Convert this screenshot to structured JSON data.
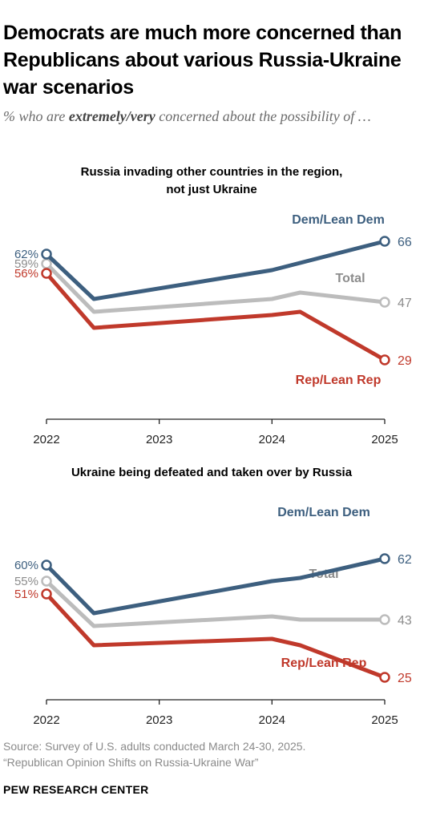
{
  "header": {
    "title": "Democrats are much more concerned than Republicans about various Russia-Ukraine war scenarios",
    "subtitle_before": "% who are ",
    "subtitle_emphasis": "extremely/very",
    "subtitle_after": " concerned about the possibility of …"
  },
  "colors": {
    "dem": "#3d5f7f",
    "total": "#bcbcbc",
    "rep": "#c0392b",
    "total_label": "#8c8c8c",
    "axis": "#222222"
  },
  "chart_data": [
    {
      "type": "line",
      "title": "Russia invading other countries in the region, not just Ukraine",
      "x_ticks": [
        2022,
        2023,
        2024,
        2025
      ],
      "x_range": [
        2022,
        2025
      ],
      "y_range": [
        20,
        70
      ],
      "series": [
        {
          "name": "Dem/Lean Dem",
          "key": "dem",
          "points": [
            [
              2022.0,
              62
            ],
            [
              2022.42,
              48
            ],
            [
              2024.0,
              57
            ],
            [
              2025.0,
              66
            ]
          ],
          "start_label": "62%",
          "end_label": "66"
        },
        {
          "name": "Total",
          "key": "total",
          "points": [
            [
              2022.0,
              59
            ],
            [
              2022.42,
              44
            ],
            [
              2024.0,
              48
            ],
            [
              2024.25,
              50
            ],
            [
              2025.0,
              47
            ],
            [
              2025.0,
              47
            ]
          ],
          "start_label": "59%",
          "end_label": "47"
        },
        {
          "name": "Rep/Lean Rep",
          "key": "rep",
          "points": [
            [
              2022.0,
              56
            ],
            [
              2022.42,
              39
            ],
            [
              2024.0,
              43
            ],
            [
              2024.25,
              44
            ],
            [
              2025.0,
              29
            ]
          ],
          "start_label": "56%",
          "end_label": "29"
        }
      ]
    },
    {
      "type": "line",
      "title": "Ukraine being defeated and taken over by Russia",
      "x_ticks": [
        2022,
        2023,
        2024,
        2025
      ],
      "x_range": [
        2022,
        2025
      ],
      "y_range": [
        20,
        70
      ],
      "series": [
        {
          "name": "Dem/Lean Dem",
          "key": "dem",
          "points": [
            [
              2022.0,
              60
            ],
            [
              2022.42,
              45
            ],
            [
              2024.0,
              55
            ],
            [
              2024.25,
              56
            ],
            [
              2025.0,
              62
            ]
          ],
          "start_label": "60%",
          "end_label": "62"
        },
        {
          "name": "Total",
          "key": "total",
          "points": [
            [
              2022.0,
              55
            ],
            [
              2022.42,
              41
            ],
            [
              2024.0,
              44
            ],
            [
              2024.25,
              43
            ],
            [
              2025.0,
              43
            ]
          ],
          "start_label": "55%",
          "end_label": "43"
        },
        {
          "name": "Rep/Lean Rep",
          "key": "rep",
          "points": [
            [
              2022.0,
              51
            ],
            [
              2022.42,
              35
            ],
            [
              2024.0,
              37
            ],
            [
              2024.25,
              35
            ],
            [
              2025.0,
              25
            ]
          ],
          "start_label": "51%",
          "end_label": "25"
        }
      ]
    }
  ],
  "footer": {
    "source_line1": "Source: Survey of U.S. adults conducted March 24-30, 2025.",
    "source_line2": "“Republican Opinion Shifts on Russia-Ukraine War”",
    "brand": "PEW RESEARCH CENTER"
  }
}
